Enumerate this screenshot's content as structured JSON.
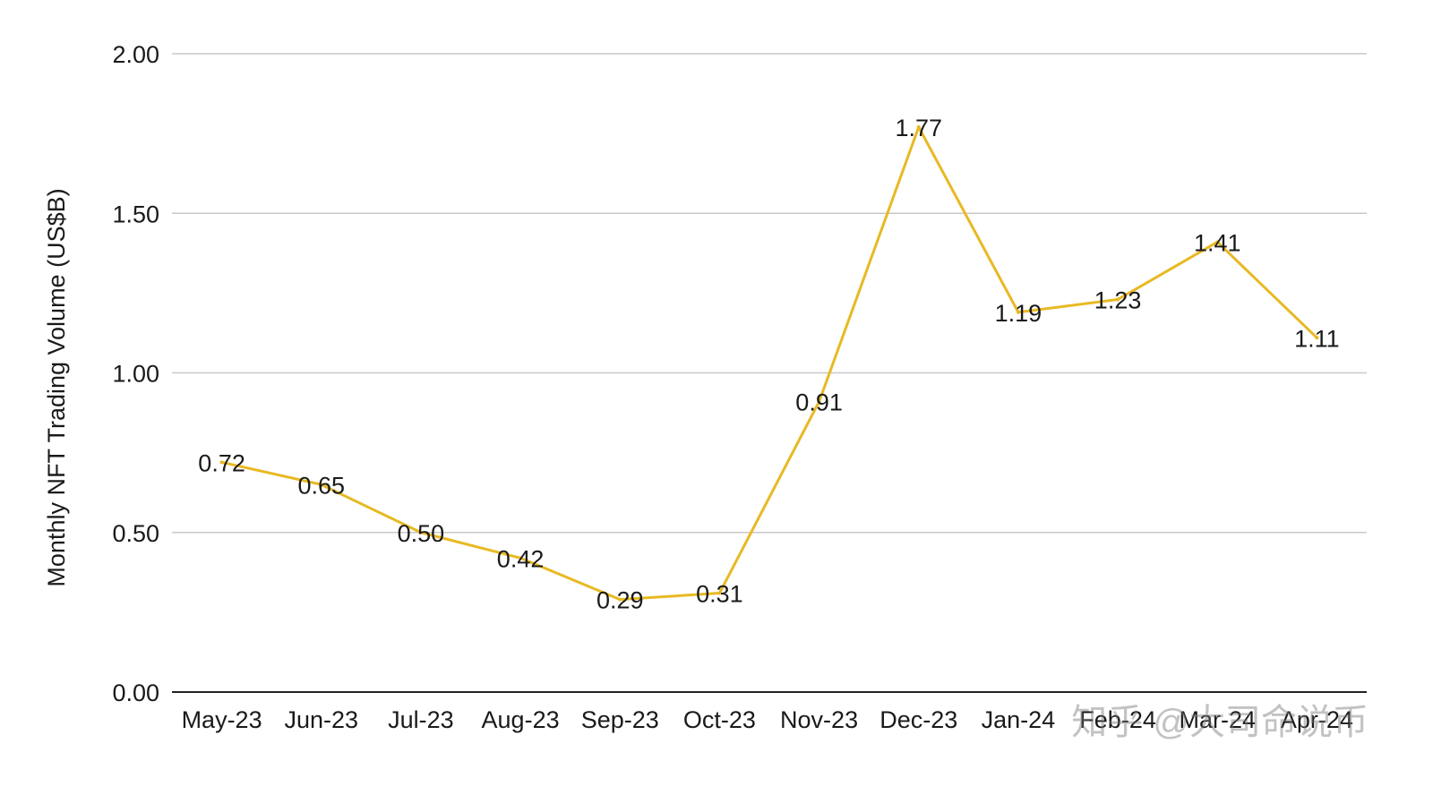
{
  "chart_data": {
    "type": "line",
    "title": "",
    "xlabel": "",
    "ylabel": "Monthly NFT Trading Volume (US$B)",
    "categories": [
      "May-23",
      "Jun-23",
      "Jul-23",
      "Aug-23",
      "Sep-23",
      "Oct-23",
      "Nov-23",
      "Dec-23",
      "Jan-24",
      "Feb-24",
      "Mar-24",
      "Apr-24"
    ],
    "series": [
      {
        "values": [
          0.72,
          0.65,
          0.5,
          0.42,
          0.29,
          0.31,
          0.91,
          1.77,
          1.19,
          1.23,
          1.41,
          1.11
        ],
        "labels": [
          "0.72",
          "0.65",
          "0.50",
          "0.42",
          "0.29",
          "0.31",
          "0.91",
          "1.77",
          "1.19",
          "1.23",
          "1.41",
          "1.11"
        ],
        "color": "#E8B923"
      }
    ],
    "y_ticks": [
      0,
      0.5,
      1.0,
      1.5,
      2.0
    ],
    "y_tick_labels": [
      "0.00",
      "0.50",
      "1.00",
      "1.50",
      "2.00"
    ],
    "ylim": [
      0,
      2.0
    ],
    "grid": true,
    "legend": "none",
    "gridline_color": "#c8c8c8"
  },
  "watermark": {
    "text": "知乎 @大司命说币"
  }
}
